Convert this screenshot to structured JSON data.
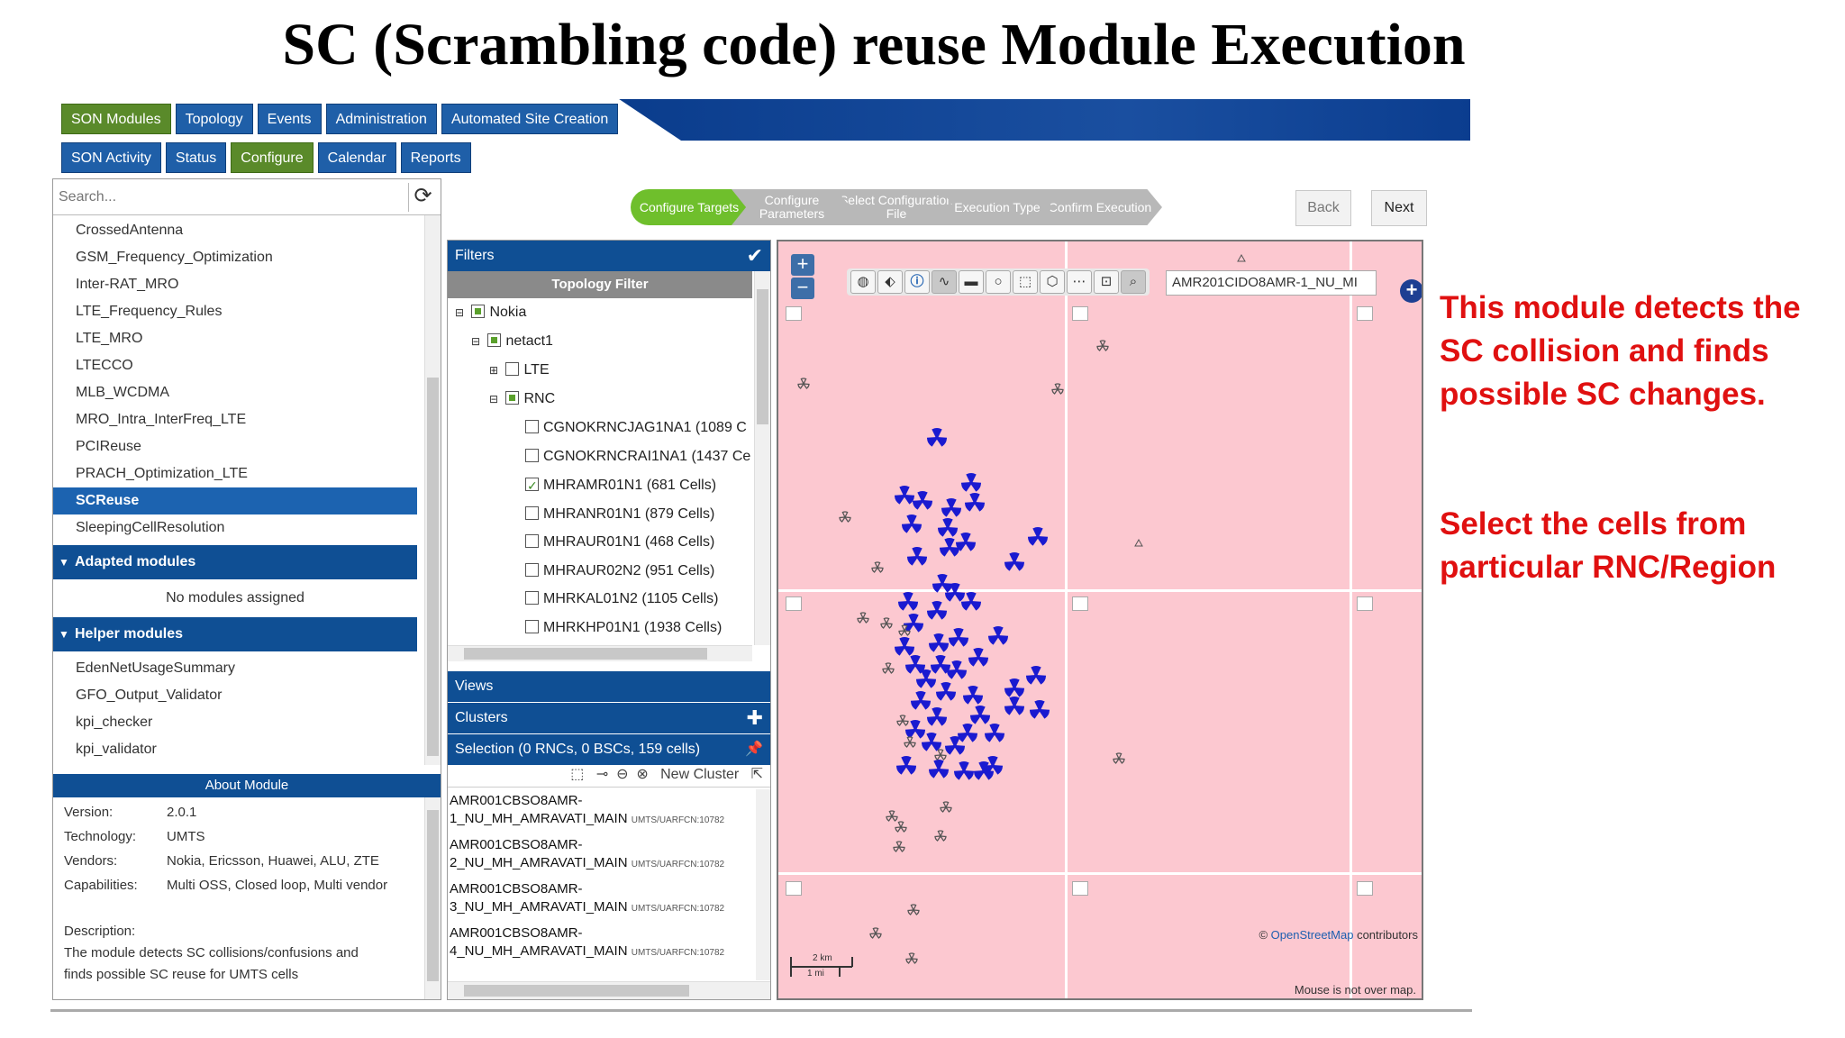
{
  "slide_title": "SC (Scrambling code) reuse Module Execution",
  "nav": {
    "row1": [
      {
        "label": "SON Modules",
        "active": true
      },
      {
        "label": "Topology",
        "active": false
      },
      {
        "label": "Events",
        "active": false
      },
      {
        "label": "Administration",
        "active": false
      },
      {
        "label": "Automated Site Creation",
        "active": false
      }
    ],
    "row2": [
      {
        "label": "SON Activity",
        "active": false
      },
      {
        "label": "Status",
        "active": false
      },
      {
        "label": "Configure",
        "active": true
      },
      {
        "label": "Calendar",
        "active": false
      },
      {
        "label": "Reports",
        "active": false
      }
    ]
  },
  "wizard": {
    "steps": [
      {
        "label": "Configure Targets",
        "active": true
      },
      {
        "label": "Configure Parameters",
        "active": false
      },
      {
        "label": "Select Configuration File",
        "active": false
      },
      {
        "label": "Execution Type",
        "active": false
      },
      {
        "label": "Confirm Execution",
        "active": false
      }
    ],
    "back_label": "Back",
    "next_label": "Next"
  },
  "left": {
    "search_placeholder": "Search...",
    "modules": [
      "CrossedAntenna",
      "GSM_Frequency_Optimization",
      "Inter-RAT_MRO",
      "LTE_Frequency_Rules",
      "LTE_MRO",
      "LTECCO",
      "MLB_WCDMA",
      "MRO_Intra_InterFreq_LTE",
      "PCIReuse",
      "PRACH_Optimization_LTE",
      "SCReuse",
      "SleepingCellResolution"
    ],
    "selected_module": "SCReuse",
    "adapted_header": "Adapted modules",
    "adapted_empty": "No modules assigned",
    "helper_header": "Helper modules",
    "helpers": [
      "EdenNetUsageSummary",
      "GFO_Output_Validator",
      "kpi_checker",
      "kpi_validator"
    ],
    "about": {
      "header": "About Module",
      "version_label": "Version:",
      "version": "2.0.1",
      "technology_label": "Technology:",
      "technology": "UMTS",
      "vendors_label": "Vendors:",
      "vendors": "Nokia, Ericsson, Huawei, ALU, ZTE",
      "capabilities_label": "Capabilities:",
      "capabilities": "Multi OSS, Closed loop, Multi vendor",
      "description_label": "Description:",
      "description_line1": "The module detects SC collisions/confusions and",
      "description_line2": "finds possible SC reuse for UMTS cells"
    }
  },
  "middle": {
    "filters_label": "Filters",
    "topology_filter_label": "Topology Filter",
    "tree": {
      "nokia": "Nokia",
      "netact": "netact1",
      "lte": "LTE",
      "rnc": "RNC",
      "rncs": [
        {
          "label": "CGNOKRNCJAG1NA1 (1089 C",
          "checked": false
        },
        {
          "label": "CGNOKRNCRAI1NA1 (1437 Ce",
          "checked": false
        },
        {
          "label": "MHRAMR01N1 (681 Cells)",
          "checked": true
        },
        {
          "label": "MHRANR01N1 (879 Cells)",
          "checked": false
        },
        {
          "label": "MHRAUR01N1 (468 Cells)",
          "checked": false
        },
        {
          "label": "MHRAUR02N2 (951 Cells)",
          "checked": false
        },
        {
          "label": "MHRKAL01N2 (1105 Cells)",
          "checked": false
        },
        {
          "label": "MHRKHP01N1 (1938 Cells)",
          "checked": false
        }
      ]
    },
    "views_label": "Views",
    "clusters_label": "Clusters",
    "selection_label": "Selection (0 RNCs, 0 BSCs, 159 cells)",
    "new_cluster_label": "New Cluster",
    "selection_items": [
      {
        "line1": "AMR001CBSO8AMR-",
        "line2": "1_NU_MH_AMRAVATI_MAIN",
        "tech": "UMTS/UARFCN:10782"
      },
      {
        "line1": "AMR001CBSO8AMR-",
        "line2": "2_NU_MH_AMRAVATI_MAIN",
        "tech": "UMTS/UARFCN:10782"
      },
      {
        "line1": "AMR001CBSO8AMR-",
        "line2": "3_NU_MH_AMRAVATI_MAIN",
        "tech": "UMTS/UARFCN:10782"
      },
      {
        "line1": "AMR001CBSO8AMR-",
        "line2": "4_NU_MH_AMRAVATI_MAIN",
        "tech": "UMTS/UARFCN:10782"
      }
    ]
  },
  "map": {
    "search_value": "AMR201CIDO8AMR-1_NU_MI",
    "credit_link": "OpenStreetMap",
    "credit_rest": " contributors",
    "credit_symbol": "©",
    "mouse_status": "Mouse is not over map.",
    "scale_km": "2 km",
    "scale_mi": "1 mi",
    "colors": {
      "background": "#fcc8d0",
      "selected_site": "#1a1ad0",
      "other_site": "#555555"
    }
  },
  "annotations": {
    "note1_line1": "This module detects the",
    "note1_line2": "SC collision and finds",
    "note1_line3": "possible SC changes.",
    "note2_line1": "Select the cells from",
    "note2_line2": "particular RNC/Region"
  }
}
